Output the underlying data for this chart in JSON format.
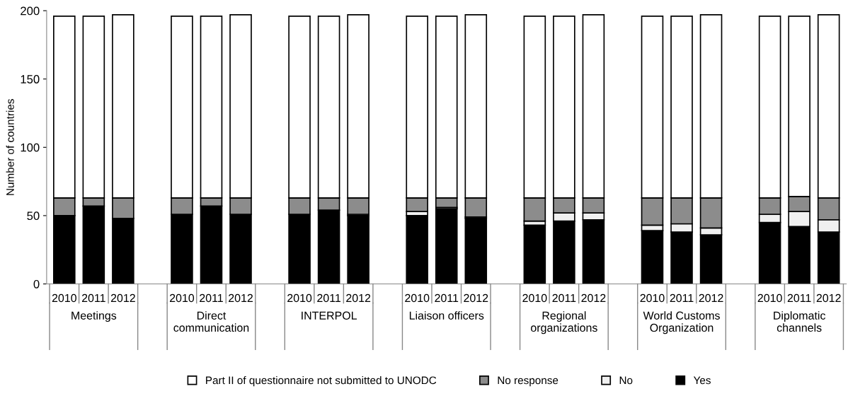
{
  "chart_data": {
    "type": "bar",
    "stacked": true,
    "ylabel": "Number of countries",
    "categories": [
      "2010",
      "2011",
      "2012",
      null,
      "2010",
      "2011",
      "2012",
      null,
      "2010",
      "2011",
      "2012",
      null,
      "2010",
      "2011",
      "2012",
      null,
      "2010",
      "2011",
      "2012",
      null,
      "2010",
      "2011",
      "2012",
      null,
      "2010",
      "2011",
      "2012"
    ],
    "annotations": [
      "Meetings",
      "Direct\ncommunication",
      "INTERPOL",
      "Liaison officers",
      "Regional\norganizations",
      "World Customs\nOrganization",
      "Diplomatic\nchannels"
    ],
    "ylim": [
      0,
      200
    ],
    "yticks": [
      0,
      50,
      100,
      150,
      200
    ],
    "grid": false,
    "legend": "bottom",
    "series": [
      {
        "name": "Yes",
        "color": "#000000",
        "values": [
          50,
          57,
          48,
          null,
          51,
          57,
          51,
          null,
          51,
          54,
          50,
          null,
          50,
          55,
          48,
          null,
          43,
          46,
          47,
          null,
          39,
          38,
          36,
          null,
          45,
          42,
          38
        ]
      },
      {
        "name": "No",
        "color": "#f0f0f0",
        "values": [
          0,
          0,
          0,
          null,
          0,
          0,
          0,
          null,
          0,
          0,
          1,
          null,
          3,
          1,
          1,
          null,
          3,
          6,
          5,
          null,
          4,
          6,
          5,
          null,
          6,
          11,
          9
        ]
      },
      {
        "name": "No response",
        "color": "#8c8c8c",
        "values": [
          13,
          6,
          15,
          null,
          12,
          6,
          12,
          null,
          12,
          9,
          12,
          null,
          10,
          7,
          14,
          null,
          17,
          11,
          11,
          null,
          20,
          19,
          22,
          null,
          12,
          11,
          16
        ]
      },
      {
        "name": "Part II of questionnaire not submitted to UNODC",
        "color": "#ffffff",
        "values": [
          133,
          133,
          134,
          null,
          133,
          133,
          134,
          null,
          133,
          133,
          134,
          null,
          133,
          133,
          134,
          null,
          133,
          133,
          134,
          null,
          133,
          133,
          134,
          null,
          133,
          132,
          134
        ]
      }
    ]
  }
}
